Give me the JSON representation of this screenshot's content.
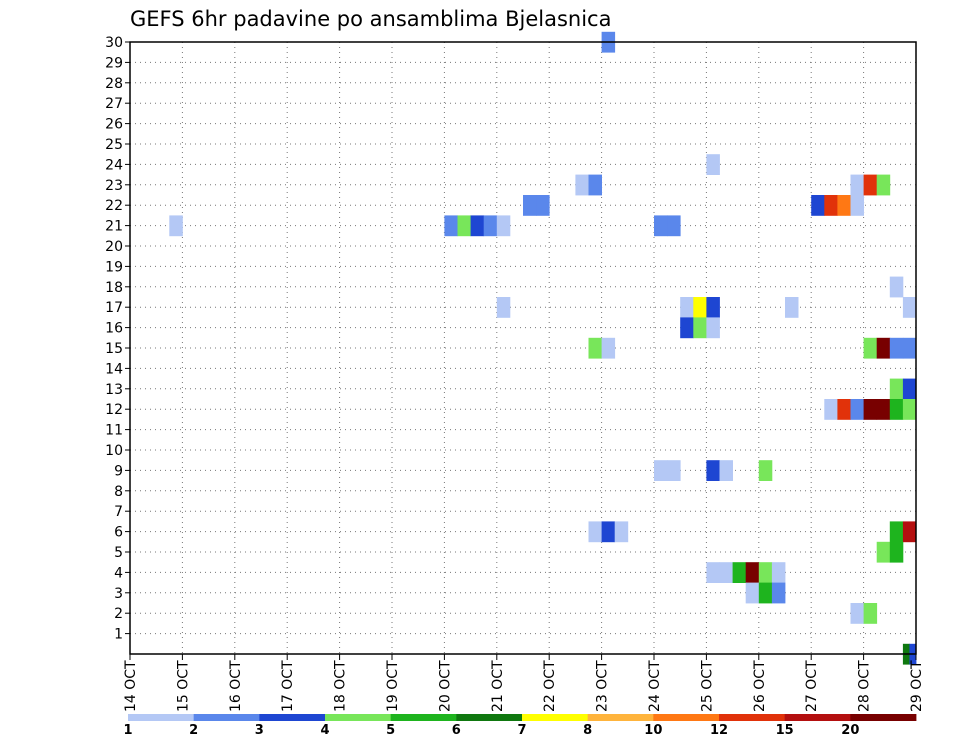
{
  "chart_data": {
    "type": "heatmap",
    "title": "GEFS 6hr padavine po ansamblima Bjelasnica",
    "xlabel": "",
    "ylabel": "",
    "x_tick_labels": [
      "14 OCT",
      "15 OCT",
      "16 OCT",
      "17 OCT",
      "18 OCT",
      "19 OCT",
      "20 OCT",
      "21 OCT",
      "22 OCT",
      "23 OCT",
      "24 OCT",
      "25 OCT",
      "26 OCT",
      "27 OCT",
      "28 OCT",
      "29 OCT"
    ],
    "x_unit": "6-hour step (0 = 14 OCT 00Z)",
    "xlim": [
      0,
      60
    ],
    "y_tick_labels": [
      "1",
      "2",
      "3",
      "4",
      "5",
      "6",
      "7",
      "8",
      "9",
      "10",
      "11",
      "12",
      "13",
      "14",
      "15",
      "16",
      "17",
      "18",
      "19",
      "20",
      "21",
      "22",
      "23",
      "24",
      "25",
      "26",
      "27",
      "28",
      "29",
      "30"
    ],
    "ylim": [
      0,
      30
    ],
    "grid": true,
    "legend": {
      "placement": "bottom",
      "labels": [
        "1",
        "2",
        "3",
        "4",
        "5",
        "6",
        "7",
        "8",
        "10",
        "12",
        "15",
        "20"
      ],
      "colors": [
        "#b4c8f5",
        "#5a87eb",
        "#1e46d2",
        "#78e65a",
        "#1eb41e",
        "#0f780f",
        "#ffff00",
        "#ffb43c",
        "#ff7814",
        "#e1320a",
        "#b40f0f",
        "#780000"
      ]
    },
    "cells": [
      {
        "x": 3,
        "y": 21,
        "c": 0
      },
      {
        "x": 24,
        "y": 21,
        "c": 1
      },
      {
        "x": 25,
        "y": 21,
        "c": 3
      },
      {
        "x": 26,
        "y": 21,
        "c": 2
      },
      {
        "x": 27,
        "y": 21,
        "c": 1
      },
      {
        "x": 28,
        "y": 21,
        "c": 0
      },
      {
        "x": 30,
        "y": 22,
        "c": 1
      },
      {
        "x": 31,
        "y": 22,
        "c": 1
      },
      {
        "x": 34,
        "y": 23,
        "c": 0
      },
      {
        "x": 35,
        "y": 23,
        "c": 1
      },
      {
        "x": 36,
        "y": 30,
        "c": 1
      },
      {
        "x": 40,
        "y": 21,
        "c": 1
      },
      {
        "x": 41,
        "y": 21,
        "c": 1
      },
      {
        "x": 44,
        "y": 24,
        "c": 0
      },
      {
        "x": 52,
        "y": 22,
        "c": 2
      },
      {
        "x": 53,
        "y": 22,
        "c": 9
      },
      {
        "x": 54,
        "y": 22,
        "c": 8
      },
      {
        "x": 55,
        "y": 22,
        "c": 0
      },
      {
        "x": 55,
        "y": 23,
        "c": 0
      },
      {
        "x": 56,
        "y": 23,
        "c": 9
      },
      {
        "x": 57,
        "y": 23,
        "c": 3
      },
      {
        "x": 58,
        "y": 18,
        "c": 0
      },
      {
        "x": 28,
        "y": 17,
        "c": 0
      },
      {
        "x": 42,
        "y": 17,
        "c": 0
      },
      {
        "x": 43,
        "y": 17,
        "c": 6
      },
      {
        "x": 44,
        "y": 17,
        "c": 2
      },
      {
        "x": 42,
        "y": 16,
        "c": 2
      },
      {
        "x": 43,
        "y": 16,
        "c": 3
      },
      {
        "x": 44,
        "y": 16,
        "c": 0
      },
      {
        "x": 50,
        "y": 17,
        "c": 0
      },
      {
        "x": 59,
        "y": 17,
        "c": 0
      },
      {
        "x": 35,
        "y": 15,
        "c": 3
      },
      {
        "x": 36,
        "y": 15,
        "c": 0
      },
      {
        "x": 56,
        "y": 15,
        "c": 3
      },
      {
        "x": 57,
        "y": 15,
        "c": 11
      },
      {
        "x": 58,
        "y": 15,
        "c": 1
      },
      {
        "x": 59,
        "y": 15,
        "c": 1
      },
      {
        "x": 58,
        "y": 13,
        "c": 3
      },
      {
        "x": 59,
        "y": 13,
        "c": 2
      },
      {
        "x": 53,
        "y": 12,
        "c": 0
      },
      {
        "x": 54,
        "y": 12,
        "c": 9
      },
      {
        "x": 55,
        "y": 12,
        "c": 1
      },
      {
        "x": 56,
        "y": 12,
        "c": 11
      },
      {
        "x": 57,
        "y": 12,
        "c": 11
      },
      {
        "x": 58,
        "y": 12,
        "c": 4
      },
      {
        "x": 59,
        "y": 12,
        "c": 3
      },
      {
        "x": 40,
        "y": 9,
        "c": 0
      },
      {
        "x": 41,
        "y": 9,
        "c": 0
      },
      {
        "x": 44,
        "y": 9,
        "c": 2
      },
      {
        "x": 45,
        "y": 9,
        "c": 0
      },
      {
        "x": 48,
        "y": 9,
        "c": 3
      },
      {
        "x": 35,
        "y": 6,
        "c": 0
      },
      {
        "x": 36,
        "y": 6,
        "c": 2
      },
      {
        "x": 37,
        "y": 6,
        "c": 0
      },
      {
        "x": 58,
        "y": 6,
        "c": 4
      },
      {
        "x": 59,
        "y": 6,
        "c": 10
      },
      {
        "x": 57,
        "y": 5,
        "c": 3
      },
      {
        "x": 58,
        "y": 5,
        "c": 4
      },
      {
        "x": 44,
        "y": 4,
        "c": 0
      },
      {
        "x": 45,
        "y": 4,
        "c": 0
      },
      {
        "x": 46,
        "y": 4,
        "c": 4
      },
      {
        "x": 47,
        "y": 4,
        "c": 11
      },
      {
        "x": 48,
        "y": 4,
        "c": 3
      },
      {
        "x": 49,
        "y": 4,
        "c": 0
      },
      {
        "x": 47,
        "y": 3,
        "c": 0
      },
      {
        "x": 48,
        "y": 3,
        "c": 4
      },
      {
        "x": 49,
        "y": 3,
        "c": 1
      },
      {
        "x": 55,
        "y": 2,
        "c": 0
      },
      {
        "x": 56,
        "y": 2,
        "c": 3
      },
      {
        "x": 59,
        "y": 0,
        "c": 5
      },
      {
        "x": 59.5,
        "y": 0,
        "c": 2
      }
    ]
  }
}
